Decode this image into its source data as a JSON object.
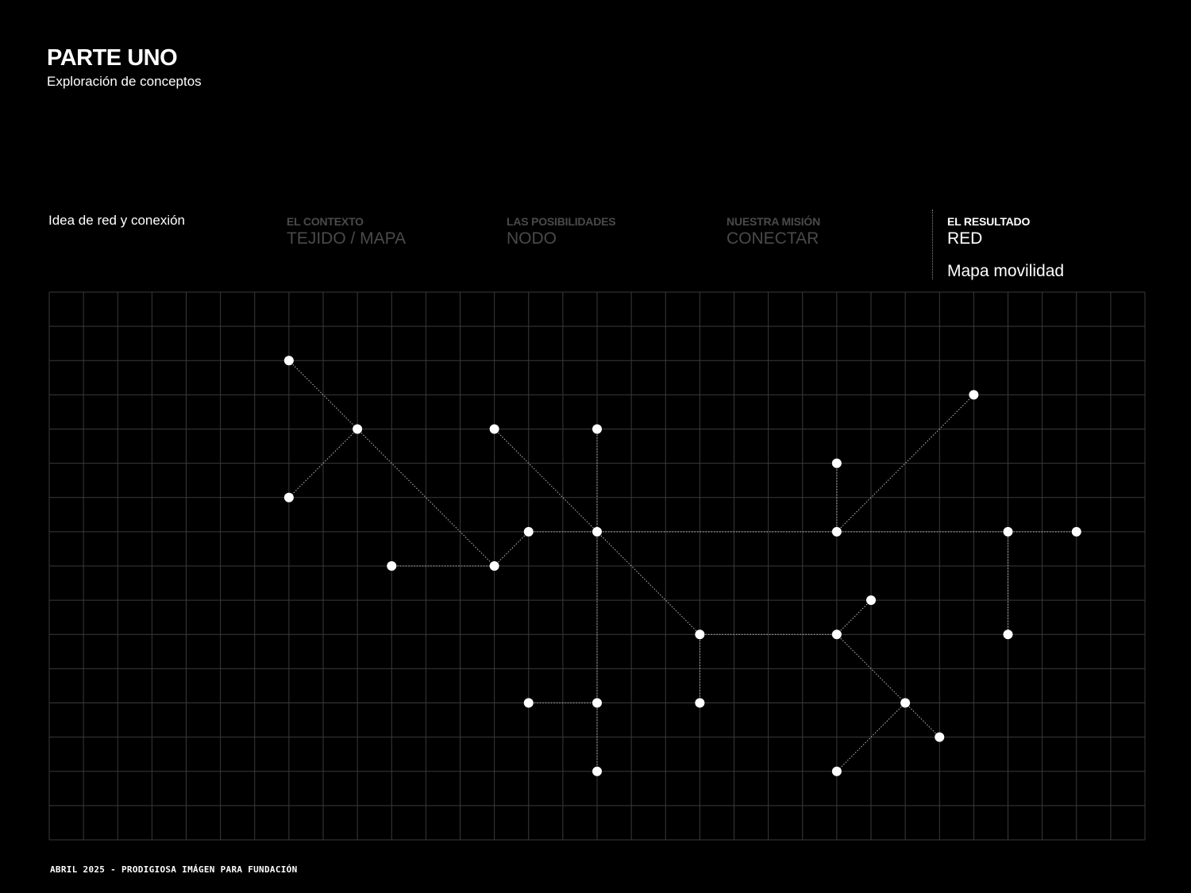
{
  "header": {
    "title": "PARTE UNO",
    "subtitle": "Exploración de conceptos"
  },
  "intro": {
    "text": "Idea de red y conexión"
  },
  "steps": [
    {
      "label": "EL CONTEXTO",
      "value": "TEJIDO / MAPA",
      "state": "dim"
    },
    {
      "label": "LAS POSIBILIDADES",
      "value": "NODO",
      "state": "dim"
    },
    {
      "label": "NUESTRA MISIÓN",
      "value": "CONECTAR",
      "state": "dim"
    },
    {
      "label": "EL RESULTADO",
      "value": "RED",
      "state": "active"
    }
  ],
  "result_extra": "Mapa movilidad",
  "footer": {
    "text": "ABRIL 2025 - PRODIGIOSA IMÁGEN PARA FUNDACIÓN"
  },
  "colors": {
    "background": "#000000",
    "foreground": "#ffffff",
    "dim_text": "#4a4a4a",
    "grid_line": "#3a3a3a"
  },
  "network": {
    "grid": {
      "columns": 32,
      "rows": 16
    },
    "nodes": [
      [
        7,
        2
      ],
      [
        9,
        4
      ],
      [
        7,
        6
      ],
      [
        10,
        8
      ],
      [
        13,
        8
      ],
      [
        13,
        4
      ],
      [
        14,
        7
      ],
      [
        16,
        7
      ],
      [
        16,
        4
      ],
      [
        16,
        12
      ],
      [
        14,
        12
      ],
      [
        16,
        14
      ],
      [
        19,
        10
      ],
      [
        19,
        12
      ],
      [
        23,
        7
      ],
      [
        23,
        5
      ],
      [
        27,
        3
      ],
      [
        28,
        7
      ],
      [
        30,
        7
      ],
      [
        28,
        10
      ],
      [
        23,
        10
      ],
      [
        24,
        9
      ],
      [
        25,
        12
      ],
      [
        26,
        13
      ],
      [
        23,
        14
      ]
    ],
    "edges": [
      [
        0,
        1
      ],
      [
        1,
        2
      ],
      [
        1,
        4
      ],
      [
        3,
        4
      ],
      [
        4,
        6
      ],
      [
        6,
        7
      ],
      [
        5,
        7
      ],
      [
        7,
        12
      ],
      [
        8,
        7
      ],
      [
        7,
        9
      ],
      [
        9,
        11
      ],
      [
        10,
        9
      ],
      [
        12,
        13
      ],
      [
        12,
        20
      ],
      [
        7,
        14
      ],
      [
        14,
        15
      ],
      [
        14,
        16
      ],
      [
        14,
        17
      ],
      [
        17,
        18
      ],
      [
        17,
        19
      ],
      [
        20,
        21
      ],
      [
        20,
        22
      ],
      [
        22,
        23
      ],
      [
        22,
        24
      ]
    ]
  }
}
